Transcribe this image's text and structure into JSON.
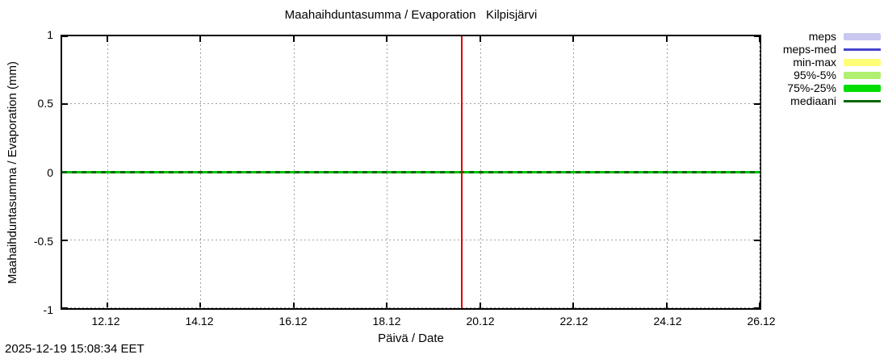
{
  "chart_data": {
    "type": "line",
    "title": "Maahaihduntasumma / Evaporation   Kilpisjärvi",
    "xlabel": "Päivä / Date",
    "ylabel": "Maahaihduntasumma / Evaporation (mm)",
    "ylim": [
      -1,
      1
    ],
    "y_tick_labels": [
      "1",
      "0.5",
      "0",
      "-0.5",
      "-1"
    ],
    "x_tick_labels": [
      "12.12",
      "14.12",
      "16.12",
      "18.12",
      "20.12",
      "22.12",
      "24.12",
      "26.12"
    ],
    "grid": true,
    "legend_position": "outside-top-right",
    "series": [
      {
        "name": "meps",
        "swatch": "band",
        "color": "#c8c8f0",
        "values_constant": 0
      },
      {
        "name": "meps-med",
        "swatch": "line",
        "color": "#4444cc",
        "values_constant": 0
      },
      {
        "name": "min-max",
        "swatch": "band",
        "color": "#ffff77",
        "values_constant": 0
      },
      {
        "name": "95%-5%",
        "swatch": "band",
        "color": "#b0f070",
        "values_constant": 0
      },
      {
        "name": "75%-25%",
        "swatch": "band",
        "color": "#00dd00",
        "values_constant": 0
      },
      {
        "name": "mediaani",
        "swatch": "line",
        "color": "#006600",
        "values_constant": 0
      }
    ],
    "annotations": {
      "zero_value_line": {
        "y": 0,
        "colors": [
          "#00c300",
          "#006b00"
        ]
      },
      "current_time_line": {
        "color": "#dd0000"
      }
    }
  },
  "footer": {
    "timestamp": "2025-12-19 15:08:34 EET"
  }
}
